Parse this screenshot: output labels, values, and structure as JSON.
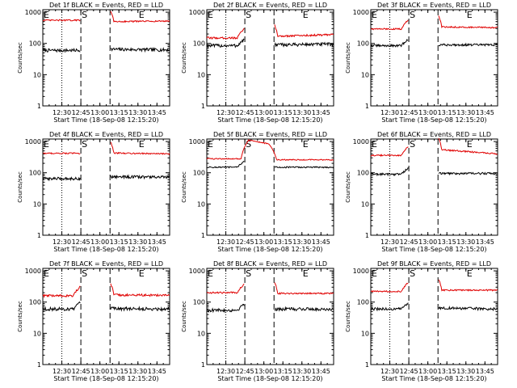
{
  "colors": {
    "events": "#000000",
    "lld": "#e00000",
    "axis": "#000000"
  },
  "chart_data": [
    {
      "type": "line",
      "title": "Det 1f BLACK = Events, RED = LLD",
      "xlabel": "Start Time (18-Sep-08 12:15:20)",
      "ylabel": "Counts/sec",
      "ylim": [
        1,
        1200
      ],
      "y_scale": "log",
      "xlim": [
        "12:15",
        "13:55"
      ],
      "x_ticks": [
        "12:30",
        "12:45",
        "13:00",
        "13:15",
        "13:30",
        "13:45"
      ],
      "y_ticks": [
        "1",
        "10",
        "100",
        "1000"
      ],
      "markers": [
        {
          "label": "E",
          "time": "12:15"
        },
        {
          "label": "S",
          "time": "12:45"
        },
        {
          "label": "E",
          "time": "13:30"
        }
      ],
      "dotted_lines": [
        "12:15",
        "12:30"
      ],
      "dashed_lines": [
        "12:45",
        "13:08"
      ],
      "gap": [
        "12:45",
        "13:08"
      ],
      "series": [
        {
          "name": "Events",
          "baseline_pre": 60,
          "baseline_post": 65,
          "end_value": 62,
          "noise": 0.12,
          "spike": "none"
        },
        {
          "name": "LLD",
          "baseline_pre": 550,
          "baseline_post": 500,
          "end_value": 520,
          "noise": 0.05,
          "spike": "none"
        }
      ]
    },
    {
      "type": "line",
      "title": "Det 2f BLACK = Events, RED = LLD",
      "xlabel": "Start Time (18-Sep-08 12:15:20)",
      "ylabel": "Counts/sec",
      "ylim": [
        1,
        1200
      ],
      "y_scale": "log",
      "xlim": [
        "12:15",
        "13:55"
      ],
      "x_ticks": [
        "12:30",
        "12:45",
        "13:00",
        "13:15",
        "13:30",
        "13:45"
      ],
      "y_ticks": [
        "1",
        "10",
        "100",
        "1000"
      ],
      "markers": [
        {
          "label": "E",
          "time": "12:15"
        },
        {
          "label": "S",
          "time": "12:45"
        },
        {
          "label": "E",
          "time": "13:30"
        }
      ],
      "dotted_lines": [
        "12:15",
        "12:30"
      ],
      "dashed_lines": [
        "12:45",
        "13:08"
      ],
      "gap": [
        "12:45",
        "13:08"
      ],
      "series": [
        {
          "name": "Events",
          "baseline_pre": 85,
          "baseline_post": 90,
          "end_value": 95,
          "noise": 0.12,
          "spike": "rise"
        },
        {
          "name": "LLD",
          "baseline_pre": 150,
          "baseline_post": 170,
          "end_value": 190,
          "noise": 0.07,
          "spike": "rise"
        }
      ]
    },
    {
      "type": "line",
      "title": "Det 3f BLACK = Events, RED = LLD",
      "xlabel": "Start Time (18-Sep-08 12:15:20)",
      "ylabel": "Counts/sec",
      "ylim": [
        1,
        1200
      ],
      "y_scale": "log",
      "xlim": [
        "12:15",
        "13:55"
      ],
      "x_ticks": [
        "12:30",
        "12:45",
        "13:00",
        "13:15",
        "13:30",
        "13:45"
      ],
      "y_ticks": [
        "1",
        "10",
        "100",
        "1000"
      ],
      "markers": [
        {
          "label": "E",
          "time": "12:15"
        },
        {
          "label": "S",
          "time": "12:45"
        },
        {
          "label": "E",
          "time": "13:30"
        }
      ],
      "dotted_lines": [
        "12:15",
        "12:30"
      ],
      "dashed_lines": [
        "12:45",
        "13:08"
      ],
      "gap": [
        "12:45",
        "13:08"
      ],
      "series": [
        {
          "name": "Events",
          "baseline_pre": 85,
          "baseline_post": 90,
          "end_value": 90,
          "noise": 0.08,
          "spike": "rise"
        },
        {
          "name": "LLD",
          "baseline_pre": 290,
          "baseline_post": 340,
          "end_value": 320,
          "noise": 0.05,
          "spike": "rise"
        }
      ]
    },
    {
      "type": "line",
      "title": "Det 4f BLACK = Events, RED = LLD",
      "xlabel": "Start Time (18-Sep-08 12:15:20)",
      "ylabel": "Counts/sec",
      "ylim": [
        1,
        1200
      ],
      "y_scale": "log",
      "xlim": [
        "12:15",
        "13:55"
      ],
      "x_ticks": [
        "12:30",
        "12:45",
        "13:00",
        "13:15",
        "13:30",
        "13:45"
      ],
      "y_ticks": [
        "1",
        "10",
        "100",
        "1000"
      ],
      "markers": [
        {
          "label": "E",
          "time": "12:15"
        },
        {
          "label": "S",
          "time": "12:45"
        },
        {
          "label": "E",
          "time": "13:30"
        }
      ],
      "dotted_lines": [
        "12:15",
        "12:30"
      ],
      "dashed_lines": [
        "12:45",
        "13:08"
      ],
      "gap": [
        "12:45",
        "13:08"
      ],
      "series": [
        {
          "name": "Events",
          "baseline_pre": 65,
          "baseline_post": 75,
          "end_value": 72,
          "noise": 0.1,
          "spike": "none"
        },
        {
          "name": "LLD",
          "baseline_pre": 420,
          "baseline_post": 430,
          "end_value": 400,
          "noise": 0.05,
          "spike": "none"
        }
      ]
    },
    {
      "type": "line",
      "title": "Det 5f BLACK = Events, RED = LLD",
      "xlabel": "Start Time (18-Sep-08 12:15:20)",
      "ylabel": "Counts/sec",
      "ylim": [
        1,
        1200
      ],
      "y_scale": "log",
      "xlim": [
        "12:15",
        "13:55"
      ],
      "x_ticks": [
        "12:30",
        "12:45",
        "13:00",
        "13:15",
        "13:30",
        "13:45"
      ],
      "y_ticks": [
        "1",
        "10",
        "100",
        "1000"
      ],
      "markers": [
        {
          "label": "E",
          "time": "12:15"
        },
        {
          "label": "S",
          "time": "12:45"
        },
        {
          "label": "E",
          "time": "13:30"
        }
      ],
      "dotted_lines": [
        "12:15",
        "12:30"
      ],
      "dashed_lines": [
        "12:45",
        "13:08"
      ],
      "gap": [
        "12:45",
        "13:08"
      ],
      "series": [
        {
          "name": "Events",
          "baseline_pre": 150,
          "baseline_post": 150,
          "end_value": 150,
          "noise": 0.05,
          "spike": "rise"
        },
        {
          "name": "LLD",
          "baseline_pre": 280,
          "baseline_post": 260,
          "end_value": 260,
          "noise": 0.04,
          "spike": "flare",
          "flare_peak": 1100
        }
      ]
    },
    {
      "type": "line",
      "title": "Det 6f BLACK = Events, RED = LLD",
      "xlabel": "Start Time (18-Sep-08 12:15:20)",
      "ylabel": "Counts/sec",
      "ylim": [
        1,
        1200
      ],
      "y_scale": "log",
      "xlim": [
        "12:15",
        "13:55"
      ],
      "x_ticks": [
        "12:30",
        "12:45",
        "13:00",
        "13:15",
        "13:30",
        "13:45"
      ],
      "y_ticks": [
        "1",
        "10",
        "100",
        "1000"
      ],
      "markers": [
        {
          "label": "E",
          "time": "12:15"
        },
        {
          "label": "S",
          "time": "12:45"
        },
        {
          "label": "E",
          "time": "13:30"
        }
      ],
      "dotted_lines": [
        "12:15",
        "12:30"
      ],
      "dashed_lines": [
        "12:45",
        "13:08"
      ],
      "gap": [
        "12:45",
        "13:08"
      ],
      "series": [
        {
          "name": "Events",
          "baseline_pre": 90,
          "baseline_post": 95,
          "end_value": 95,
          "noise": 0.08,
          "spike": "rise"
        },
        {
          "name": "LLD",
          "baseline_pre": 360,
          "baseline_post": 550,
          "end_value": 400,
          "noise": 0.05,
          "spike": "rise"
        }
      ]
    },
    {
      "type": "line",
      "title": "Det 7f BLACK = Events, RED = LLD",
      "xlabel": "Start Time (18-Sep-08 12:15:20)",
      "ylabel": "Counts/sec",
      "ylim": [
        1,
        1200
      ],
      "y_scale": "log",
      "xlim": [
        "12:15",
        "13:55"
      ],
      "x_ticks": [
        "12:30",
        "12:45",
        "13:00",
        "13:15",
        "13:30",
        "13:45"
      ],
      "y_ticks": [
        "1",
        "10",
        "100",
        "1000"
      ],
      "markers": [
        {
          "label": "E",
          "time": "12:15"
        },
        {
          "label": "S",
          "time": "12:45"
        },
        {
          "label": "E",
          "time": "13:30"
        }
      ],
      "dotted_lines": [
        "12:15",
        "12:30"
      ],
      "dashed_lines": [
        "12:45",
        "13:08"
      ],
      "gap": [
        "12:45",
        "13:08"
      ],
      "series": [
        {
          "name": "Events",
          "baseline_pre": 60,
          "baseline_post": 62,
          "end_value": 60,
          "noise": 0.12,
          "spike": "rise"
        },
        {
          "name": "LLD",
          "baseline_pre": 160,
          "baseline_post": 170,
          "end_value": 165,
          "noise": 0.08,
          "spike": "rise"
        }
      ]
    },
    {
      "type": "line",
      "title": "Det 8f BLACK = Events, RED = LLD",
      "xlabel": "Start Time (18-Sep-08 12:15:20)",
      "ylabel": "Counts/sec",
      "ylim": [
        1,
        1200
      ],
      "y_scale": "log",
      "xlim": [
        "12:15",
        "13:55"
      ],
      "x_ticks": [
        "12:30",
        "12:45",
        "13:00",
        "13:15",
        "13:30",
        "13:45"
      ],
      "y_ticks": [
        "1",
        "10",
        "100",
        "1000"
      ],
      "markers": [
        {
          "label": "E",
          "time": "12:15"
        },
        {
          "label": "S",
          "time": "12:45"
        },
        {
          "label": "E",
          "time": "13:30"
        }
      ],
      "dotted_lines": [
        "12:15",
        "12:30"
      ],
      "dashed_lines": [
        "12:45",
        "13:08"
      ],
      "gap": [
        "12:45",
        "13:08"
      ],
      "series": [
        {
          "name": "Events",
          "baseline_pre": 55,
          "baseline_post": 60,
          "end_value": 60,
          "noise": 0.12,
          "spike": "rise"
        },
        {
          "name": "LLD",
          "baseline_pre": 200,
          "baseline_post": 190,
          "end_value": 190,
          "noise": 0.06,
          "spike": "rise"
        }
      ]
    },
    {
      "type": "line",
      "title": "Det 9f BLACK = Events, RED = LLD",
      "xlabel": "Start Time (18-Sep-08 12:15:20)",
      "ylabel": "Counts/sec",
      "ylim": [
        1,
        1200
      ],
      "y_scale": "log",
      "xlim": [
        "12:15",
        "13:55"
      ],
      "x_ticks": [
        "12:30",
        "12:45",
        "13:00",
        "13:15",
        "13:30",
        "13:45"
      ],
      "y_ticks": [
        "1",
        "10",
        "100",
        "1000"
      ],
      "markers": [
        {
          "label": "E",
          "time": "12:15"
        },
        {
          "label": "S",
          "time": "12:45"
        },
        {
          "label": "E",
          "time": "13:30"
        }
      ],
      "dotted_lines": [
        "12:15",
        "12:30"
      ],
      "dashed_lines": [
        "12:45",
        "13:08"
      ],
      "gap": [
        "12:45",
        "13:08"
      ],
      "series": [
        {
          "name": "Events",
          "baseline_pre": 60,
          "baseline_post": 65,
          "end_value": 60,
          "noise": 0.1,
          "spike": "rise"
        },
        {
          "name": "LLD",
          "baseline_pre": 220,
          "baseline_post": 240,
          "end_value": 240,
          "noise": 0.05,
          "spike": "rise"
        }
      ]
    }
  ]
}
